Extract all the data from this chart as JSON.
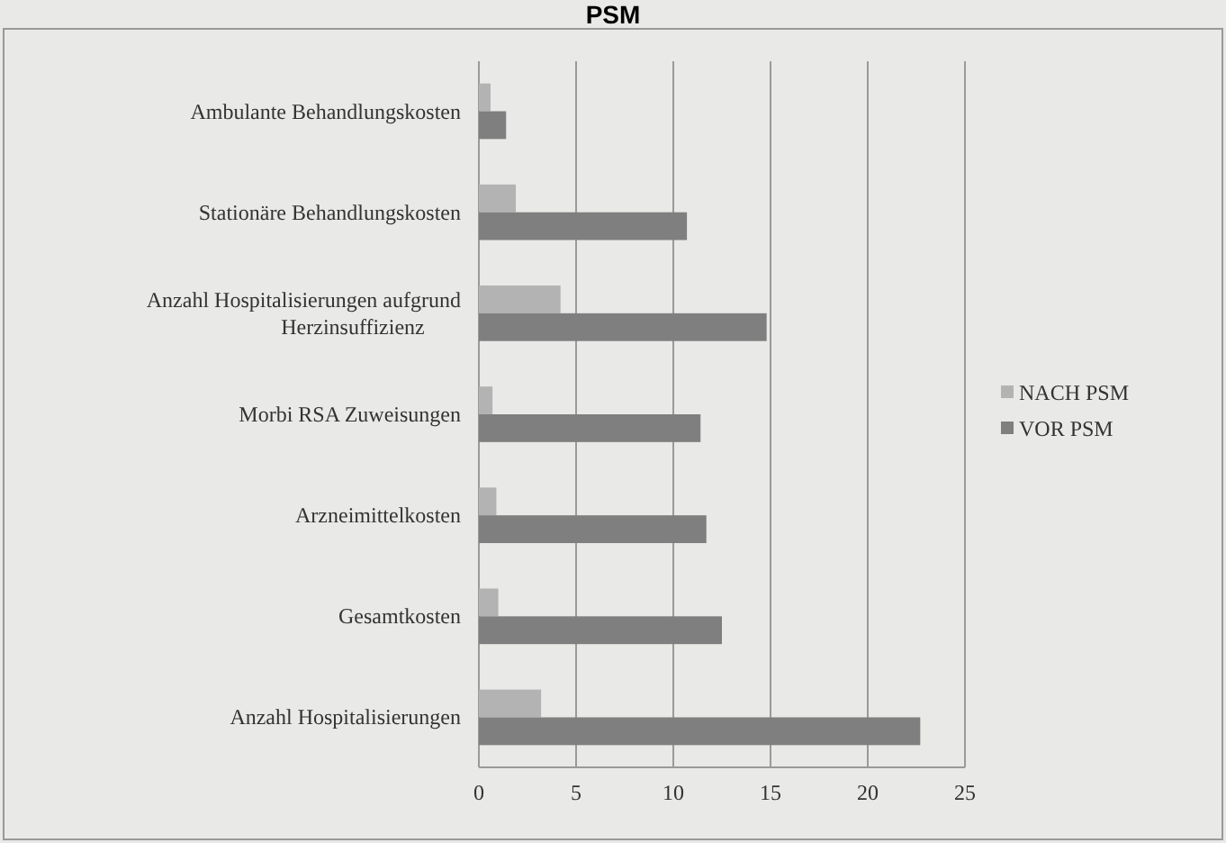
{
  "chart_data": {
    "type": "bar",
    "orientation": "horizontal",
    "title": "PSM",
    "categories": [
      "Ambulante Behandlungskosten",
      "Stationäre Behandlungskosten",
      "Anzahl Hospitalisierungen aufgrund Herzinsuffizienz",
      "Morbi RSA Zuweisungen",
      "Arzneimittelkosten",
      "Gesamtkosten",
      "Anzahl Hospitalisierungen"
    ],
    "series": [
      {
        "name": "NACH PSM",
        "color": "#b3b3b3",
        "values": [
          0.6,
          1.9,
          4.2,
          0.7,
          0.9,
          1.0,
          3.2
        ]
      },
      {
        "name": "VOR PSM",
        "color": "#7f7f7f",
        "values": [
          1.4,
          10.7,
          14.8,
          11.4,
          11.7,
          12.5,
          22.7
        ]
      }
    ],
    "xlim": [
      0,
      25
    ],
    "xticks": [
      0,
      5,
      10,
      15,
      20,
      25
    ],
    "grid": "x",
    "legend": "right"
  }
}
